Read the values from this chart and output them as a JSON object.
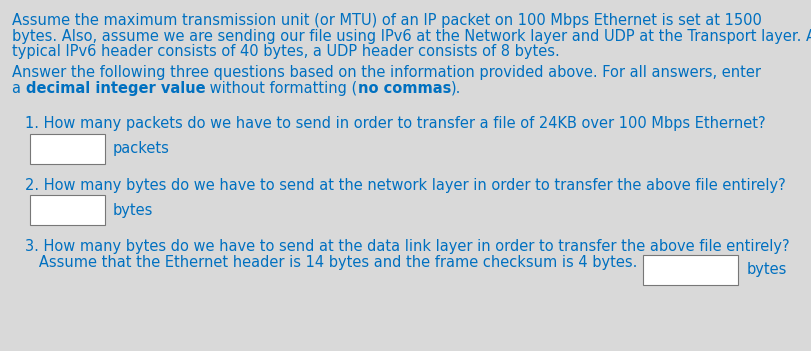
{
  "bg_color": "#d9d9d9",
  "tc": "#0070c0",
  "para1": [
    "Assume the maximum transmission unit (or MTU) of an IP packet on 100 Mbps Ethernet is set at 1500",
    "bytes. Also, assume we are sending our file using IPv6 at the Network layer and UDP at the Transport layer. A",
    "typical IPv6 header consists of 40 bytes, a UDP header consists of 8 bytes."
  ],
  "para2_line1": "Answer the following three questions based on the information provided above. For all answers, enter",
  "para2_parts": [
    [
      "a ",
      false
    ],
    [
      "decimal integer value",
      true
    ],
    [
      " without formatting (",
      false
    ],
    [
      "no commas",
      true
    ],
    [
      ").",
      false
    ]
  ],
  "q1": "1. How many packets do we have to send in order to transfer a file of 24KB over 100 Mbps Ethernet?",
  "q1_label": "packets",
  "q2": "2. How many bytes do we have to send at the network layer in order to transfer the above file entirely?",
  "q2_label": "bytes",
  "q3_line1": "3. How many bytes do we have to send at the data link layer in order to transfer the above file entirely?",
  "q3_line2": "   Assume that the Ethernet header is 14 bytes and the frame checksum is 4 bytes.",
  "q3_label": "bytes",
  "fs": 10.5,
  "fs_q": 10.5
}
